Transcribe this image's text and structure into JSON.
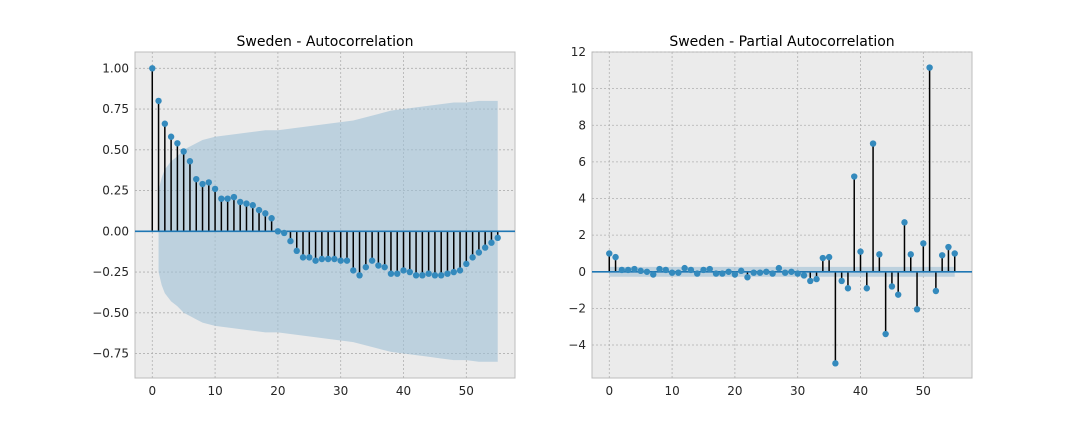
{
  "chart_data": [
    {
      "type": "stem",
      "title": "Sweden - Autocorrelation",
      "xlim": [
        -2.75,
        57.75
      ],
      "ylim": [
        -0.9,
        1.1
      ],
      "x_ticks": [
        0,
        10,
        20,
        30,
        40,
        50
      ],
      "x_tick_labels": [
        "0",
        "10",
        "20",
        "30",
        "40",
        "50"
      ],
      "y_ticks": [
        1.0,
        0.75,
        0.5,
        0.25,
        0.0,
        -0.25,
        -0.5,
        -0.75
      ],
      "y_tick_labels": [
        "1.00",
        "0.75",
        "0.50",
        "0.25",
        "0.00",
        "−0.25",
        "−0.50",
        "−0.75"
      ],
      "grid": true,
      "colors": {
        "marker": "#348abd",
        "stem": "#000000",
        "band": "#9fc0d6",
        "zero_line": "#1f77b4"
      },
      "x": [
        0,
        1,
        2,
        3,
        4,
        5,
        6,
        7,
        8,
        9,
        10,
        11,
        12,
        13,
        14,
        15,
        16,
        17,
        18,
        19,
        20,
        21,
        22,
        23,
        24,
        25,
        26,
        27,
        28,
        29,
        30,
        31,
        32,
        33,
        34,
        35,
        36,
        37,
        38,
        39,
        40,
        41,
        42,
        43,
        44,
        45,
        46,
        47,
        48,
        49,
        50,
        51,
        52,
        53,
        54,
        55
      ],
      "values": [
        1.0,
        0.8,
        0.66,
        0.58,
        0.54,
        0.49,
        0.43,
        0.32,
        0.29,
        0.3,
        0.26,
        0.2,
        0.2,
        0.21,
        0.18,
        0.17,
        0.16,
        0.13,
        0.11,
        0.08,
        0.0,
        -0.01,
        -0.06,
        -0.12,
        -0.16,
        -0.16,
        -0.18,
        -0.17,
        -0.17,
        -0.17,
        -0.18,
        -0.18,
        -0.24,
        -0.27,
        -0.22,
        -0.18,
        -0.21,
        -0.22,
        -0.26,
        -0.26,
        -0.24,
        -0.25,
        -0.27,
        -0.27,
        -0.26,
        -0.27,
        -0.27,
        -0.26,
        -0.25,
        -0.24,
        -0.2,
        -0.16,
        -0.13,
        -0.1,
        -0.07,
        -0.04
      ],
      "confidence_band": {
        "x": [
          1,
          1.5,
          2,
          3,
          4,
          5,
          6,
          7,
          8,
          10,
          12,
          14,
          16,
          18,
          20,
          22,
          24,
          26,
          28,
          30,
          32,
          34,
          36,
          38,
          40,
          42,
          44,
          46,
          48,
          50,
          52,
          54,
          55
        ],
        "upper": [
          0.25,
          0.33,
          0.38,
          0.43,
          0.46,
          0.5,
          0.52,
          0.54,
          0.56,
          0.58,
          0.59,
          0.6,
          0.61,
          0.62,
          0.62,
          0.63,
          0.64,
          0.65,
          0.66,
          0.67,
          0.68,
          0.7,
          0.72,
          0.74,
          0.75,
          0.76,
          0.77,
          0.78,
          0.79,
          0.79,
          0.8,
          0.8,
          0.8
        ]
      }
    },
    {
      "type": "stem",
      "title": "Sweden - Partial Autocorrelation",
      "xlim": [
        -2.75,
        57.75
      ],
      "ylim": [
        -5.8,
        12.0
      ],
      "x_ticks": [
        0,
        10,
        20,
        30,
        40,
        50
      ],
      "x_tick_labels": [
        "0",
        "10",
        "20",
        "30",
        "40",
        "50"
      ],
      "y_ticks": [
        12,
        10,
        8,
        6,
        4,
        2,
        0,
        -2,
        -4
      ],
      "y_tick_labels": [
        "12",
        "10",
        "8",
        "6",
        "4",
        "2",
        "0",
        "−2",
        "−4"
      ],
      "grid": true,
      "colors": {
        "marker": "#348abd",
        "stem": "#000000",
        "band": "#9fc0d6",
        "zero_line": "#1f77b4"
      },
      "x": [
        0,
        1,
        2,
        3,
        4,
        5,
        6,
        7,
        8,
        9,
        10,
        11,
        12,
        13,
        14,
        15,
        16,
        17,
        18,
        19,
        20,
        21,
        22,
        23,
        24,
        25,
        26,
        27,
        28,
        29,
        30,
        31,
        32,
        33,
        34,
        35,
        36,
        37,
        38,
        39,
        40,
        41,
        42,
        43,
        44,
        45,
        46,
        47,
        48,
        49,
        50,
        51,
        52,
        53,
        54,
        55
      ],
      "values": [
        1.0,
        0.8,
        0.1,
        0.1,
        0.15,
        0.05,
        0.0,
        -0.15,
        0.15,
        0.1,
        -0.05,
        -0.05,
        0.2,
        0.1,
        -0.1,
        0.1,
        0.15,
        -0.1,
        -0.1,
        0.0,
        -0.15,
        0.05,
        -0.3,
        -0.05,
        -0.05,
        0.0,
        -0.1,
        0.2,
        -0.05,
        0.0,
        -0.1,
        -0.2,
        -0.5,
        -0.4,
        0.75,
        0.8,
        -5.0,
        -0.5,
        -0.9,
        5.2,
        1.1,
        -0.9,
        7.0,
        0.95,
        -3.4,
        -0.8,
        -1.25,
        2.7,
        0.95,
        -2.05,
        1.55,
        11.15,
        -1.05,
        0.9,
        1.35,
        1.0
      ],
      "confidence_band": {
        "x": [
          0,
          55
        ],
        "upper": [
          0.27,
          0.27
        ]
      }
    }
  ]
}
